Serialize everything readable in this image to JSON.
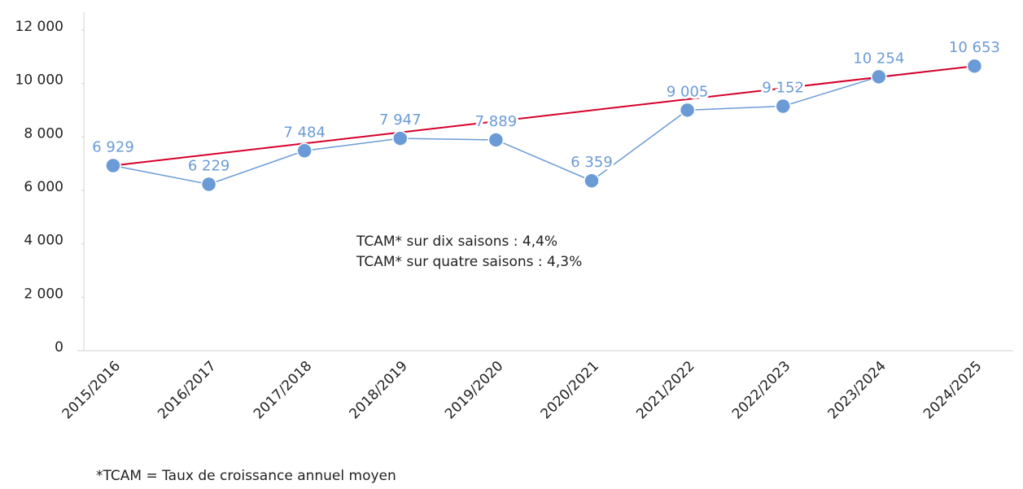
{
  "chart_data": {
    "type": "line",
    "categories": [
      "2015/2016",
      "2016/2017",
      "2017/2018",
      "2018/2019",
      "2019/2020",
      "2020/2021",
      "2021/2022",
      "2022/2023",
      "2023/2024",
      "2024/2025"
    ],
    "values": [
      6929,
      6229,
      7484,
      7947,
      7889,
      6359,
      9005,
      9152,
      10254,
      10653
    ],
    "value_labels": [
      "6 929",
      "6 229",
      "7 484",
      "7 947",
      "7 889",
      "6 359",
      "9 005",
      "9 152",
      "10 254",
      "10 653"
    ],
    "color": "#6b9bd6",
    "trend_color": "#d6002a",
    "ylim": [
      0,
      12000
    ],
    "yticks": [
      0,
      {
        "value": 2000,
        "label": "2 000"
      },
      {
        "value": 4000,
        "label": "4 000"
      },
      {
        "value": 6000,
        "label": "6 000"
      },
      {
        "value": 8000,
        "label": "8 000"
      },
      {
        "value": 10000,
        "label": "10 000"
      },
      {
        "value": 12000,
        "label": "12 000"
      }
    ],
    "annotations": [
      "TCAM* sur dix saisons : 4,4%",
      "TCAM* sur quatre saisons : 4,3%"
    ],
    "footnote": "*TCAM = Taux de croissance annuel moyen"
  }
}
